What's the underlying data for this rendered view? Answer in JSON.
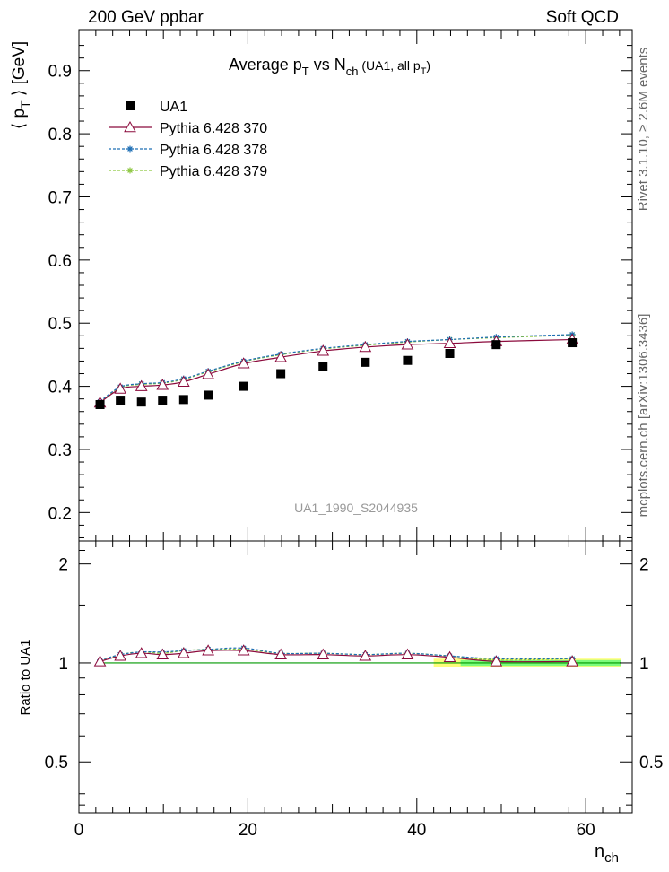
{
  "header": {
    "left": "200 GeV ppbar",
    "right": "Soft QCD"
  },
  "side_labels": {
    "rivet": "Rivet 3.1.10, ≥ 2.6M events",
    "mcplots": "mcplots.cern.ch [arXiv:1306.3436]"
  },
  "colors": {
    "data": "#000000",
    "pythia370": "#8b0a3c",
    "pythia378": "#1f6fb5",
    "pythia379": "#8cc63f",
    "band_outer": "#fdfd7a",
    "band_inner": "#7cfc7c"
  },
  "chart_data": [
    {
      "type": "line",
      "title": "Average p_T vs N_ch (UA1, all p_T)",
      "ylabel": "⟨ p_T ⟩ [GeV]",
      "xlim": [
        0,
        65.5
      ],
      "ylim": [
        0.155,
        0.965
      ],
      "yticks": [
        "0.2",
        "0.3",
        "0.4",
        "0.5",
        "0.6",
        "0.7",
        "0.8",
        "0.9"
      ],
      "annotation": "UA1_1990_S2044935",
      "legend": [
        "UA1",
        "Pythia 6.428 370",
        "Pythia 6.428 378",
        "Pythia 6.428 379"
      ],
      "legend_position": "top-left",
      "x": [
        2.5,
        4.9,
        7.4,
        9.9,
        12.4,
        15.3,
        19.5,
        23.9,
        28.9,
        33.9,
        38.9,
        43.9,
        49.4,
        58.4
      ],
      "series": [
        {
          "name": "UA1",
          "values": [
            0.371,
            0.378,
            0.375,
            0.378,
            0.379,
            0.386,
            0.4,
            0.42,
            0.431,
            0.438,
            0.441,
            0.452,
            0.466,
            0.469
          ]
        },
        {
          "name": "Pythia 6.428 370",
          "values": [
            0.374,
            0.396,
            0.4,
            0.402,
            0.407,
            0.419,
            0.436,
            0.446,
            0.456,
            0.462,
            0.466,
            0.468,
            0.471,
            0.474
          ]
        },
        {
          "name": "Pythia 6.428 378",
          "values": [
            0.376,
            0.399,
            0.404,
            0.406,
            0.412,
            0.424,
            0.44,
            0.451,
            0.46,
            0.466,
            0.471,
            0.474,
            0.478,
            0.482
          ]
        },
        {
          "name": "Pythia 6.428 379",
          "values": [
            0.375,
            0.398,
            0.403,
            0.405,
            0.411,
            0.423,
            0.439,
            0.45,
            0.459,
            0.465,
            0.47,
            0.474,
            0.477,
            0.481
          ]
        }
      ]
    },
    {
      "type": "line",
      "ylabel": "Ratio to UA1",
      "xlabel": "n_ch",
      "xlim": [
        0,
        65.5
      ],
      "ylim": [
        0.35,
        2.35
      ],
      "yticks": [
        "0.5",
        "1",
        "2"
      ],
      "xticks": [
        "0",
        "20",
        "40",
        "60"
      ],
      "x": [
        2.5,
        4.9,
        7.4,
        9.9,
        12.4,
        15.3,
        19.5,
        23.9,
        28.9,
        33.9,
        38.9,
        43.9,
        49.4,
        58.4
      ],
      "series": [
        {
          "name": "Pythia 6.428 370",
          "values": [
            1.01,
            1.05,
            1.07,
            1.06,
            1.07,
            1.09,
            1.09,
            1.06,
            1.06,
            1.05,
            1.06,
            1.04,
            1.01,
            1.01
          ]
        },
        {
          "name": "Pythia 6.428 378",
          "values": [
            1.02,
            1.06,
            1.08,
            1.08,
            1.09,
            1.1,
            1.11,
            1.07,
            1.07,
            1.06,
            1.07,
            1.05,
            1.03,
            1.03
          ]
        },
        {
          "name": "Pythia 6.428 379",
          "values": [
            1.01,
            1.06,
            1.08,
            1.07,
            1.09,
            1.1,
            1.1,
            1.07,
            1.07,
            1.06,
            1.07,
            1.05,
            1.02,
            1.03
          ]
        }
      ],
      "reference_band": {
        "x": [
          42,
          65.5
        ],
        "half_width": [
          0.01,
          0.03
        ]
      }
    }
  ]
}
